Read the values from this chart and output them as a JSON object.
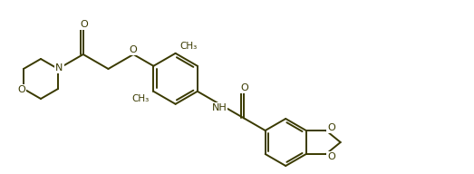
{
  "bg_color": "#ffffff",
  "line_color": "#3a3a00",
  "line_width": 1.4,
  "figsize": [
    5.23,
    1.92
  ],
  "dpi": 100,
  "xlim": [
    0,
    52.3
  ],
  "ylim": [
    0,
    19.2
  ]
}
